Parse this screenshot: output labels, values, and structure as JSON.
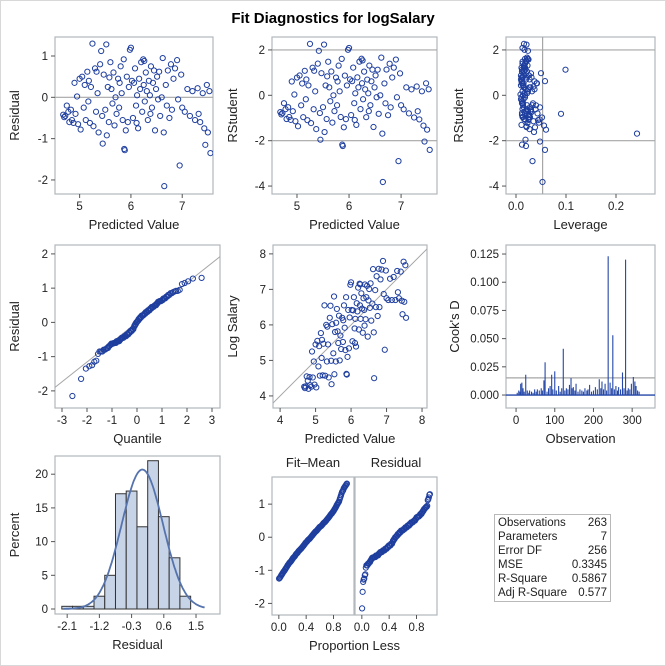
{
  "title": "Fit Diagnostics for logSalary",
  "colors": {
    "marker": "#1f3f9f",
    "refline": "#a6a6a6",
    "frame": "#b2b8bc",
    "curve": "#5573ad",
    "bar_fill": "#c7d3e6",
    "bar_edge": "#333333",
    "needle": "#2447a8"
  },
  "model": {
    "mse": 0.3345,
    "n_parameters": 7,
    "n_observations": 263
  },
  "stats_table": {
    "rows": [
      {
        "label": "Observations",
        "value": "263"
      },
      {
        "label": "Parameters",
        "value": "7"
      },
      {
        "label": "Error DF",
        "value": "256"
      },
      {
        "label": "MSE",
        "value": "0.3345"
      },
      {
        "label": "R-Square",
        "value": "0.5867"
      },
      {
        "label": "Adj R-Square",
        "value": "0.577"
      }
    ]
  },
  "chart_data": [
    {
      "type": "scatter",
      "name": "residual-vs-predicted",
      "xlabel": "Predicted Value",
      "ylabel": "Residual",
      "xlim": [
        4.52,
        7.6
      ],
      "ylim": [
        -2.34,
        1.46
      ],
      "xticks": [
        5,
        6,
        7
      ],
      "xtick_labels": [
        "5",
        "6",
        "7"
      ],
      "yticks": [
        -2,
        -1,
        0,
        1
      ],
      "ytick_labels": [
        "-2",
        "-1",
        "0",
        "1"
      ],
      "reflines_y": [
        0
      ]
    },
    {
      "type": "scatter",
      "name": "rstudent-vs-predicted",
      "xlabel": "Predicted Value",
      "ylabel": "RStudent",
      "xlim": [
        4.52,
        7.69
      ],
      "ylim": [
        -4.35,
        2.57
      ],
      "xticks": [
        5,
        6,
        7
      ],
      "xtick_labels": [
        "5",
        "6",
        "7"
      ],
      "yticks": [
        -4,
        -2,
        0,
        2
      ],
      "ytick_labels": [
        "-4",
        "-2",
        "0",
        "2"
      ],
      "reflines_y": [
        -2,
        2
      ]
    },
    {
      "type": "scatter",
      "name": "rstudent-vs-leverage",
      "xlabel": "Leverage",
      "ylabel": "RStudent",
      "xlim": [
        -0.02,
        0.278
      ],
      "ylim": [
        -4.35,
        2.57
      ],
      "xticks": [
        0,
        0.1,
        0.2
      ],
      "xtick_labels": [
        "0.0",
        "0.1",
        "0.2"
      ],
      "yticks": [
        -4,
        -2,
        0,
        2
      ],
      "ytick_labels": [
        "-4",
        "-2",
        "0",
        "2"
      ],
      "reflines_y": [
        -2,
        2
      ],
      "reflines_x": [
        0.0532
      ]
    },
    {
      "type": "scatter",
      "name": "residual-qq-plot",
      "xlabel": "Quantile",
      "ylabel": "Residual",
      "xlim": [
        -3.28,
        3.32
      ],
      "ylim": [
        -2.5,
        2.26
      ],
      "xticks": [
        -3,
        -2,
        -1,
        0,
        1,
        2,
        3
      ],
      "xtick_labels": [
        "-3",
        "-2",
        "-1",
        "0",
        "1",
        "2",
        "3"
      ],
      "yticks": [
        -2,
        -1,
        0,
        1,
        2
      ],
      "ytick_labels": [
        "-2",
        "-1",
        "0",
        "1",
        "2"
      ],
      "refline_slope": 0.5784
    },
    {
      "type": "scatter",
      "name": "observed-vs-predicted",
      "xlabel": "Predicted Value",
      "ylabel": "Log Salary",
      "xlim": [
        3.8,
        8.14
      ],
      "ylim": [
        3.66,
        8.25
      ],
      "xticks": [
        4,
        5,
        6,
        7,
        8
      ],
      "xtick_labels": [
        "4",
        "5",
        "6",
        "7",
        "8"
      ],
      "yticks": [
        4,
        5,
        6,
        7,
        8
      ],
      "ytick_labels": [
        "4",
        "5",
        "6",
        "7",
        "8"
      ],
      "refline_slope": 1
    },
    {
      "type": "bar",
      "name": "cooks-d-plot",
      "xlabel": "Observation",
      "ylabel": "Cook's D",
      "xlim": [
        -26,
        359
      ],
      "ylim": [
        -0.0115,
        0.133
      ],
      "xticks": [
        0,
        100,
        200,
        300
      ],
      "xtick_labels": [
        "0",
        "100",
        "200",
        "300"
      ],
      "yticks": [
        0,
        0.025,
        0.05,
        0.075,
        0.1,
        0.125
      ],
      "ytick_labels": [
        "0.000",
        "0.025",
        "0.050",
        "0.075",
        "0.100",
        "0.125"
      ],
      "reflines_y": [
        0,
        0.0152
      ],
      "spikes": [
        [
          3,
          0.002
        ],
        [
          7,
          0.004
        ],
        [
          10,
          0.003
        ],
        [
          12,
          0.01
        ],
        [
          15,
          0.011
        ],
        [
          18,
          0.006
        ],
        [
          21,
          0.003
        ],
        [
          25,
          0.018
        ],
        [
          29,
          0.004
        ],
        [
          33,
          0.002
        ],
        [
          35,
          0.004
        ],
        [
          40,
          0.003
        ],
        [
          44,
          0.002
        ],
        [
          48,
          0.005
        ],
        [
          52,
          0.003
        ],
        [
          55,
          0.005
        ],
        [
          60,
          0.004
        ],
        [
          65,
          0.006
        ],
        [
          68,
          0.004
        ],
        [
          72,
          0.013
        ],
        [
          75,
          0.029
        ],
        [
          80,
          0.003
        ],
        [
          84,
          0.006
        ],
        [
          88,
          0.008
        ],
        [
          92,
          0.018
        ],
        [
          95,
          0.005
        ],
        [
          100,
          0.021
        ],
        [
          104,
          0.004
        ],
        [
          110,
          0.008
        ],
        [
          114,
          0.003
        ],
        [
          118,
          0.006
        ],
        [
          122,
          0.041
        ],
        [
          126,
          0.004
        ],
        [
          130,
          0.006
        ],
        [
          134,
          0.005
        ],
        [
          138,
          0.009
        ],
        [
          142,
          0.015
        ],
        [
          145,
          0.006
        ],
        [
          148,
          0.007
        ],
        [
          152,
          0.004
        ],
        [
          155,
          0.01
        ],
        [
          160,
          0.003
        ],
        [
          165,
          0.005
        ],
        [
          170,
          0.004
        ],
        [
          174,
          0.003
        ],
        [
          178,
          0.006
        ],
        [
          183,
          0.004
        ],
        [
          186,
          0.005
        ],
        [
          190,
          0.009
        ],
        [
          195,
          0.003
        ],
        [
          200,
          0.004
        ],
        [
          205,
          0.007
        ],
        [
          210,
          0.005
        ],
        [
          215,
          0.014
        ],
        [
          219,
          0.006
        ],
        [
          222,
          0.012
        ],
        [
          226,
          0.005
        ],
        [
          230,
          0.01
        ],
        [
          234,
          0.004
        ],
        [
          238,
          0.123
        ],
        [
          243,
          0.011
        ],
        [
          247,
          0.006
        ],
        [
          250,
          0.053
        ],
        [
          254,
          0.005
        ],
        [
          258,
          0.008
        ],
        [
          262,
          0.004
        ],
        [
          265,
          0.007
        ],
        [
          270,
          0.005
        ],
        [
          275,
          0.02
        ],
        [
          279,
          0.006
        ],
        [
          283,
          0.12
        ],
        [
          287,
          0.004
        ],
        [
          290,
          0.006
        ],
        [
          294,
          0.005
        ],
        [
          298,
          0.01
        ],
        [
          303,
          0.016
        ],
        [
          307,
          0.012
        ],
        [
          310,
          0.008
        ],
        [
          314,
          0.004
        ],
        [
          318,
          0.003
        ]
      ]
    },
    {
      "type": "bar",
      "name": "residual-histogram",
      "xlabel": "Residual",
      "ylabel": "Percent",
      "xlim": [
        -2.44,
        2.17
      ],
      "ylim": [
        -0.74,
        22.7
      ],
      "xticks": [
        -2.1,
        -1.2,
        -0.3,
        0.6,
        1.5
      ],
      "xtick_labels": [
        "-2.1",
        "-1.2",
        "-0.3",
        "0.6",
        "1.5"
      ],
      "yticks": [
        0,
        5,
        10,
        15,
        20
      ],
      "ytick_labels": [
        "0",
        "5",
        "10",
        "15",
        "20"
      ],
      "bin_width": 0.3,
      "bin_centers": [
        -2.1,
        -1.8,
        -1.5,
        -1.2,
        -0.9,
        -0.6,
        -0.3,
        0.0,
        0.3,
        0.6,
        0.9,
        1.2
      ],
      "percents": [
        0.4,
        0.4,
        0.4,
        1.9,
        5.0,
        17.1,
        17.5,
        12.2,
        22.0,
        13.7,
        7.6,
        1.9
      ],
      "normal_curve": {
        "mean": 0,
        "sd": 0.5784
      }
    },
    {
      "type": "scatter",
      "name": "residual-fit-spread",
      "xlabel": "Proportion Less",
      "xlim": [
        -0.1,
        1.1
      ],
      "ylim": [
        -2.35,
        1.82
      ],
      "mean_prediction": 5.93,
      "panel_headers": [
        "Fit–Mean",
        "Residual"
      ],
      "xticks": [
        0,
        0.4,
        0.8
      ],
      "xtick_labels": [
        "0.0",
        "0.4",
        "0.8"
      ],
      "yticks": [
        -2,
        -1,
        0,
        1
      ],
      "ytick_labels": [
        "-2",
        "-1",
        "0",
        "1"
      ]
    }
  ],
  "observations_columns": [
    "predicted",
    "residual",
    "leverage"
  ],
  "observations": [
    [
      4.68,
      -0.42,
      0.031
    ],
    [
      4.7,
      -0.48,
      0.025
    ],
    [
      4.72,
      -0.45,
      0.018
    ],
    [
      4.75,
      -0.2,
      0.012
    ],
    [
      4.78,
      -0.35,
      0.022
    ],
    [
      4.8,
      -0.6,
      0.016
    ],
    [
      4.83,
      -0.3,
      0.028
    ],
    [
      4.85,
      -0.55,
      0.014
    ],
    [
      4.88,
      -0.62,
      0.019
    ],
    [
      4.9,
      0.35,
      0.011
    ],
    [
      4.92,
      -0.4,
      0.024
    ],
    [
      4.95,
      0.02,
      0.009
    ],
    [
      4.97,
      -0.65,
      0.035
    ],
    [
      5.0,
      0.45,
      0.013
    ],
    [
      5.02,
      -0.78,
      0.021
    ],
    [
      5.05,
      0.5,
      0.017
    ],
    [
      5.08,
      -0.25,
      0.04
    ],
    [
      5.1,
      0.3,
      0.012
    ],
    [
      5.12,
      -0.55,
      0.026
    ],
    [
      5.15,
      0.62,
      0.015
    ],
    [
      5.17,
      -0.1,
      0.01
    ],
    [
      5.18,
      0.4,
      0.02
    ],
    [
      5.2,
      -0.62,
      0.044
    ],
    [
      5.22,
      0.25,
      0.014
    ],
    [
      5.25,
      1.3,
      0.016
    ],
    [
      5.27,
      -0.7,
      0.023
    ],
    [
      5.3,
      0.7,
      0.011
    ],
    [
      5.32,
      -0.35,
      0.03
    ],
    [
      5.35,
      0.1,
      0.013
    ],
    [
      5.37,
      -0.85,
      0.027
    ],
    [
      5.4,
      0.8,
      0.018
    ],
    [
      5.42,
      1.12,
      0.024
    ],
    [
      5.44,
      -0.45,
      0.012
    ],
    [
      5.45,
      -1.12,
      0.019
    ],
    [
      5.47,
      0.55,
      0.05
    ],
    [
      5.5,
      -0.3,
      0.015
    ],
    [
      5.52,
      1.28,
      0.021
    ],
    [
      5.53,
      -0.92,
      0.036
    ],
    [
      5.55,
      0.25,
      0.01
    ],
    [
      5.57,
      -0.6,
      0.017
    ],
    [
      5.6,
      0.85,
      0.013
    ],
    [
      5.62,
      0.2,
      0.029
    ],
    [
      5.64,
      -0.15,
      0.012
    ],
    [
      5.66,
      0.6,
      0.022
    ],
    [
      5.68,
      -0.68,
      0.046
    ],
    [
      5.7,
      0.0,
      0.014
    ],
    [
      5.72,
      -0.4,
      0.019
    ],
    [
      5.75,
      0.45,
      0.011
    ],
    [
      5.77,
      -0.25,
      0.033
    ],
    [
      5.8,
      0.75,
      0.016
    ],
    [
      5.82,
      0.1,
      0.024
    ],
    [
      5.84,
      -0.55,
      0.013
    ],
    [
      5.86,
      0.92,
      0.018
    ],
    [
      5.87,
      -1.25,
      0.012
    ],
    [
      5.88,
      -1.28,
      0.02
    ],
    [
      5.9,
      -0.8,
      0.038
    ],
    [
      5.92,
      0.5,
      0.01
    ],
    [
      5.94,
      -0.6,
      0.025
    ],
    [
      5.96,
      0.25,
      0.015
    ],
    [
      5.98,
      1.15,
      0.017
    ],
    [
      6.0,
      1.2,
      0.013
    ],
    [
      6.02,
      0.4,
      0.027
    ],
    [
      6.04,
      -0.5,
      0.012
    ],
    [
      6.06,
      0.35,
      0.058
    ],
    [
      6.08,
      0.7,
      0.018
    ],
    [
      6.1,
      -0.2,
      0.014
    ],
    [
      6.12,
      0.05,
      0.022
    ],
    [
      6.14,
      -0.75,
      0.011
    ],
    [
      6.16,
      0.45,
      0.031
    ],
    [
      6.18,
      0.2,
      0.016
    ],
    [
      6.2,
      0.85,
      0.02
    ],
    [
      6.22,
      -0.35,
      0.013
    ],
    [
      6.24,
      0.92,
      0.024
    ],
    [
      6.25,
      0.3,
      0.042
    ],
    [
      6.27,
      -0.1,
      0.015
    ],
    [
      6.29,
      0.6,
      0.012
    ],
    [
      6.31,
      0.15,
      0.019
    ],
    [
      6.33,
      -0.55,
      0.028
    ],
    [
      6.35,
      0.4,
      0.01
    ],
    [
      6.37,
      0.05,
      0.017
    ],
    [
      6.39,
      0.75,
      0.023
    ],
    [
      6.41,
      -0.25,
      0.014
    ],
    [
      6.43,
      0.35,
      0.037
    ],
    [
      6.45,
      0.65,
      0.012
    ],
    [
      6.47,
      -0.8,
      0.021
    ],
    [
      6.49,
      0.2,
      0.016
    ],
    [
      6.51,
      0.5,
      0.026
    ],
    [
      6.53,
      -0.05,
      0.011
    ],
    [
      6.55,
      0.62,
      0.099
    ],
    [
      6.57,
      -0.45,
      0.09
    ],
    [
      6.6,
      0.0,
      0.018
    ],
    [
      6.62,
      0.95,
      0.022
    ],
    [
      6.64,
      -0.85,
      0.242
    ],
    [
      6.65,
      -2.15,
      0.053
    ],
    [
      6.68,
      0.3,
      0.015
    ],
    [
      6.7,
      -0.2,
      0.034
    ],
    [
      6.72,
      0.65,
      0.019
    ],
    [
      6.75,
      -0.5,
      0.027
    ],
    [
      6.78,
      0.8,
      0.013
    ],
    [
      6.8,
      -0.3,
      0.048
    ],
    [
      6.83,
      0.45,
      0.02
    ],
    [
      6.86,
      0.7,
      0.016
    ],
    [
      6.9,
      0.9,
      0.025
    ],
    [
      6.92,
      -0.05,
      0.018
    ],
    [
      6.95,
      -1.65,
      0.033
    ],
    [
      6.98,
      0.55,
      0.03
    ],
    [
      7.0,
      -0.25,
      0.022
    ],
    [
      7.05,
      -0.35,
      0.039
    ],
    [
      7.1,
      0.2,
      0.027
    ],
    [
      7.15,
      -0.45,
      0.043
    ],
    [
      7.2,
      0.15,
      0.024
    ],
    [
      7.25,
      -0.55,
      0.052
    ],
    [
      7.3,
      0.22,
      0.035
    ],
    [
      7.32,
      -0.4,
      0.029
    ],
    [
      7.35,
      -0.6,
      0.047
    ],
    [
      7.4,
      0.1,
      0.032
    ],
    [
      7.43,
      -0.75,
      0.056
    ],
    [
      7.45,
      -1.15,
      0.048
    ],
    [
      7.48,
      0.3,
      0.041
    ],
    [
      7.5,
      -0.85,
      0.06
    ],
    [
      7.53,
      0.15,
      0.037
    ],
    [
      7.55,
      -1.35,
      0.058
    ],
    [
      5.58,
      0.48,
      0.014
    ],
    [
      6.26,
      0.88,
      0.021
    ],
    [
      5.33,
      0.62,
      0.017
    ],
    [
      6.11,
      -0.62,
      0.025
    ],
    [
      5.78,
      0.35,
      0.012
    ],
    [
      6.38,
      -0.4,
      0.019
    ]
  ]
}
